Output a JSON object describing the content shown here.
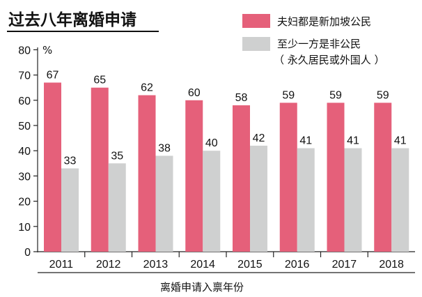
{
  "chart_data": {
    "type": "bar",
    "title": "过去八年离婚申请",
    "ylabel": "%",
    "xlabel": "离婚申请入禀年份",
    "ylim": [
      0,
      80
    ],
    "yticks": [
      0,
      10,
      20,
      30,
      40,
      50,
      60,
      70,
      80
    ],
    "categories": [
      "2011",
      "2012",
      "2013",
      "2014",
      "2015",
      "2016",
      "2017",
      "2018"
    ],
    "series": [
      {
        "name": "夫妇都是新加坡公民",
        "color": "#e5607a",
        "values": [
          67,
          65,
          62,
          60,
          58,
          59,
          59,
          59
        ]
      },
      {
        "name": "至少一方是非公民",
        "color": "#cfd0d0",
        "values": [
          33,
          35,
          38,
          40,
          42,
          41,
          41,
          41
        ]
      }
    ],
    "legend": {
      "placement": "top-right",
      "note": "（ 永久居民或外国人 ）"
    },
    "grid": false
  }
}
